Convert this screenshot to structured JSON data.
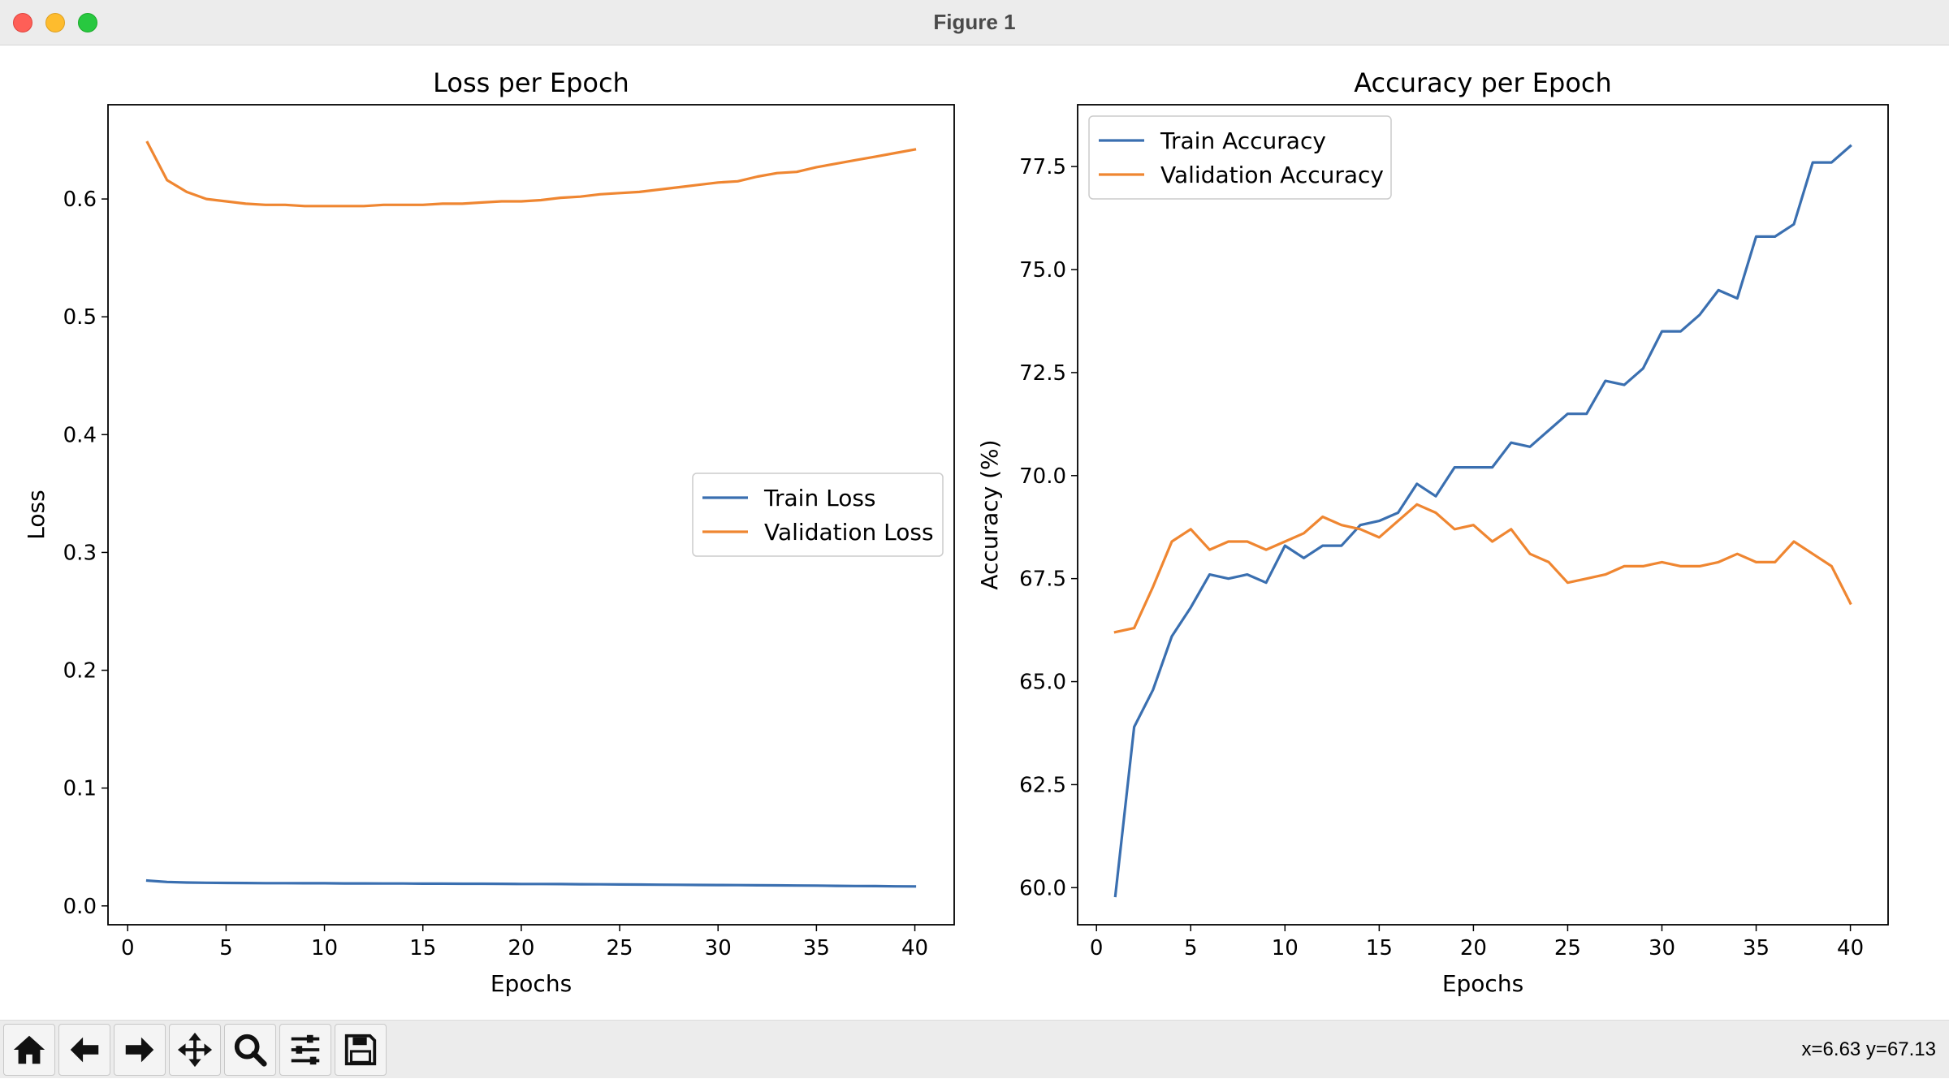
{
  "window": {
    "title": "Figure 1"
  },
  "toolbar": {
    "buttons": [
      {
        "name": "home-button",
        "icon": "home-icon"
      },
      {
        "name": "back-button",
        "icon": "arrow-left-icon"
      },
      {
        "name": "forward-button",
        "icon": "arrow-right-icon"
      },
      {
        "name": "pan-button",
        "icon": "move-arrows-icon"
      },
      {
        "name": "zoom-button",
        "icon": "magnifier-icon"
      },
      {
        "name": "configure-subplots-button",
        "icon": "sliders-icon"
      },
      {
        "name": "save-button",
        "icon": "floppy-disk-icon"
      }
    ],
    "coords": "x=6.63 y=67.13"
  },
  "colors": {
    "train": "#3a6fb0",
    "validation": "#ef8631"
  },
  "chart_data": [
    {
      "type": "line",
      "title": "Loss per Epoch",
      "xlabel": "Epochs",
      "ylabel": "Loss",
      "xlim": [
        -1,
        42
      ],
      "ylim": [
        -0.016,
        0.68
      ],
      "xticks": [
        0,
        5,
        10,
        15,
        20,
        25,
        30,
        35,
        40
      ],
      "yticks": [
        0.0,
        0.1,
        0.2,
        0.3,
        0.4,
        0.5,
        0.6
      ],
      "ytick_labels": [
        "0.0",
        "0.1",
        "0.2",
        "0.3",
        "0.4",
        "0.5",
        "0.6"
      ],
      "legend_position": "center-right",
      "grid": false,
      "x": [
        1,
        2,
        3,
        4,
        5,
        6,
        7,
        8,
        9,
        10,
        11,
        12,
        13,
        14,
        15,
        16,
        17,
        18,
        19,
        20,
        21,
        22,
        23,
        24,
        25,
        26,
        27,
        28,
        29,
        30,
        31,
        32,
        33,
        34,
        35,
        36,
        37,
        38,
        39,
        40
      ],
      "series": [
        {
          "name": "Train Loss",
          "color": "#3a6fb0",
          "values": [
            0.0215,
            0.0203,
            0.0198,
            0.0196,
            0.0195,
            0.0194,
            0.0193,
            0.0193,
            0.0192,
            0.0192,
            0.0191,
            0.0191,
            0.019,
            0.019,
            0.0189,
            0.0189,
            0.0188,
            0.0188,
            0.0187,
            0.0186,
            0.0186,
            0.0185,
            0.0184,
            0.0183,
            0.0182,
            0.0181,
            0.018,
            0.0179,
            0.0178,
            0.0177,
            0.0176,
            0.0175,
            0.0174,
            0.0173,
            0.0172,
            0.017,
            0.0169,
            0.0168,
            0.0166,
            0.0165
          ]
        },
        {
          "name": "Validation Loss",
          "color": "#ef8631",
          "values": [
            0.648,
            0.616,
            0.606,
            0.6,
            0.598,
            0.596,
            0.595,
            0.595,
            0.594,
            0.594,
            0.594,
            0.594,
            0.595,
            0.595,
            0.595,
            0.596,
            0.596,
            0.597,
            0.598,
            0.598,
            0.599,
            0.601,
            0.602,
            0.604,
            0.605,
            0.606,
            0.608,
            0.61,
            0.612,
            0.614,
            0.615,
            0.619,
            0.622,
            0.623,
            0.627,
            0.63,
            0.633,
            0.636,
            0.639,
            0.642
          ]
        }
      ]
    },
    {
      "type": "line",
      "title": "Accuracy per Epoch",
      "xlabel": "Epochs",
      "ylabel": "Accuracy (%)",
      "xlim": [
        -1,
        42
      ],
      "ylim": [
        59.1,
        79.0
      ],
      "xticks": [
        0,
        5,
        10,
        15,
        20,
        25,
        30,
        35,
        40
      ],
      "yticks": [
        60.0,
        62.5,
        65.0,
        67.5,
        70.0,
        72.5,
        75.0,
        77.5
      ],
      "ytick_labels": [
        "60.0",
        "62.5",
        "65.0",
        "67.5",
        "70.0",
        "72.5",
        "75.0",
        "77.5"
      ],
      "legend_position": "upper-left",
      "grid": false,
      "x": [
        1,
        2,
        3,
        4,
        5,
        6,
        7,
        8,
        9,
        10,
        11,
        12,
        13,
        14,
        15,
        16,
        17,
        18,
        19,
        20,
        21,
        22,
        23,
        24,
        25,
        26,
        27,
        28,
        29,
        30,
        31,
        32,
        33,
        34,
        35,
        36,
        37,
        38,
        39,
        40
      ],
      "series": [
        {
          "name": "Train Accuracy",
          "color": "#3a6fb0",
          "values": [
            59.8,
            63.9,
            64.8,
            66.1,
            66.8,
            67.6,
            67.5,
            67.6,
            67.4,
            68.3,
            68.0,
            68.3,
            68.3,
            68.8,
            68.9,
            69.1,
            69.8,
            69.5,
            70.2,
            70.2,
            70.2,
            70.8,
            70.7,
            71.1,
            71.5,
            71.5,
            72.3,
            72.2,
            72.6,
            73.5,
            73.5,
            73.9,
            74.5,
            74.3,
            75.8,
            75.8,
            76.1,
            77.6,
            77.6,
            78.0
          ]
        },
        {
          "name": "Validation Accuracy",
          "color": "#ef8631",
          "values": [
            66.2,
            66.3,
            67.3,
            68.4,
            68.7,
            68.2,
            68.4,
            68.4,
            68.2,
            68.4,
            68.6,
            69.0,
            68.8,
            68.7,
            68.5,
            68.9,
            69.3,
            69.1,
            68.7,
            68.8,
            68.4,
            68.7,
            68.1,
            67.9,
            67.4,
            67.5,
            67.6,
            67.8,
            67.8,
            67.9,
            67.8,
            67.8,
            67.9,
            68.1,
            67.9,
            67.9,
            68.4,
            68.1,
            67.8,
            66.9
          ]
        }
      ]
    }
  ]
}
